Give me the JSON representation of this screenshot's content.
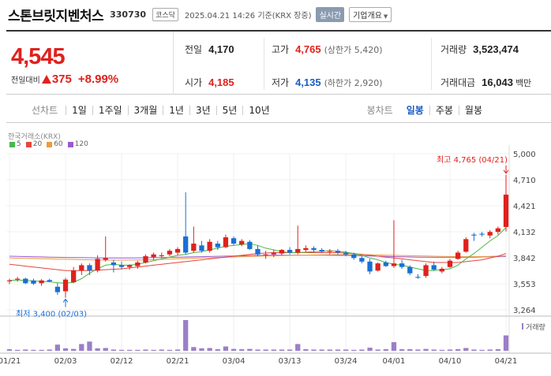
{
  "header": {
    "name": "스톤브릿지벤처스",
    "code": "330730",
    "market": "코스닥",
    "datetime": "2025.04.21 14:26 기준(KRX 장중)",
    "realtime_label": "실시간",
    "company_info_label": "기업개요"
  },
  "summary": {
    "price": "4,545",
    "change_label": "전일대비",
    "change": "375",
    "change_pct": "+8.99%",
    "prev_close_label": "전일",
    "prev_close": "4,170",
    "high_label": "고가",
    "high": "4,765",
    "upper_limit": "(상한가 5,420)",
    "volume_label": "거래량",
    "volume": "3,523,474",
    "open_label": "시가",
    "open": "4,185",
    "low_label": "저가",
    "low": "4,135",
    "lower_limit": "(하한가 2,920)",
    "amount_label": "거래대금",
    "amount": "16,043",
    "amount_unit": "백만"
  },
  "toolbar": {
    "line_label": "선차트",
    "periods": [
      "1일",
      "1주일",
      "3개월",
      "1년",
      "3년",
      "5년",
      "10년"
    ],
    "candle_label": "봉차트",
    "candle_periods": [
      "일봉",
      "주봉",
      "월봉"
    ],
    "active_candle": "일봉"
  },
  "chart_data": {
    "type": "candlestick",
    "source_label": "한국거래소(KRX)",
    "ma_legend": [
      {
        "label": "5",
        "color": "#49b84a"
      },
      {
        "label": "20",
        "color": "#e8453c"
      },
      {
        "label": "60",
        "color": "#f09a3e"
      },
      {
        "label": "120",
        "color": "#9b59d0"
      }
    ],
    "up_color": "#e0211d",
    "down_color": "#1a6fd6",
    "y_ticks": [
      "5,000",
      "4,710",
      "4,421",
      "4,132",
      "3,842",
      "3,553",
      "3,264"
    ],
    "ylim": [
      3264,
      5000
    ],
    "x_ticks": [
      {
        "label": "01/21",
        "index": 0
      },
      {
        "label": "02/03",
        "index": 7
      },
      {
        "label": "02/12",
        "index": 14
      },
      {
        "label": "02/21",
        "index": 21
      },
      {
        "label": "03/04",
        "index": 28
      },
      {
        "label": "03/13",
        "index": 35
      },
      {
        "label": "03/24",
        "index": 42
      },
      {
        "label": "04/01",
        "index": 48
      },
      {
        "label": "04/10",
        "index": 55
      },
      {
        "label": "04/21",
        "index": 62
      }
    ],
    "high_annotation": "최고 4,765 (04/21)",
    "low_annotation": "최저 3,400 (02/03)",
    "volume_label": "거래량",
    "candles": [
      {
        "o": 3580,
        "h": 3610,
        "l": 3550,
        "c": 3590
      },
      {
        "o": 3600,
        "h": 3630,
        "l": 3575,
        "c": 3610
      },
      {
        "o": 3610,
        "h": 3620,
        "l": 3550,
        "c": 3560
      },
      {
        "o": 3590,
        "h": 3610,
        "l": 3540,
        "c": 3555
      },
      {
        "o": 3560,
        "h": 3605,
        "l": 3530,
        "c": 3590
      },
      {
        "o": 3595,
        "h": 3610,
        "l": 3570,
        "c": 3580
      },
      {
        "o": 3520,
        "h": 3560,
        "l": 3430,
        "c": 3460
      },
      {
        "o": 3470,
        "h": 3620,
        "l": 3400,
        "c": 3600
      },
      {
        "o": 3570,
        "h": 3740,
        "l": 3560,
        "c": 3700
      },
      {
        "o": 3700,
        "h": 3780,
        "l": 3650,
        "c": 3760
      },
      {
        "o": 3760,
        "h": 3780,
        "l": 3650,
        "c": 3700
      },
      {
        "o": 3700,
        "h": 3870,
        "l": 3680,
        "c": 3830
      },
      {
        "o": 3820,
        "h": 4080,
        "l": 3800,
        "c": 3840
      },
      {
        "o": 3790,
        "h": 3820,
        "l": 3680,
        "c": 3760
      },
      {
        "o": 3760,
        "h": 3800,
        "l": 3710,
        "c": 3740
      },
      {
        "o": 3740,
        "h": 3770,
        "l": 3710,
        "c": 3760
      },
      {
        "o": 3750,
        "h": 3810,
        "l": 3720,
        "c": 3790
      },
      {
        "o": 3790,
        "h": 3880,
        "l": 3780,
        "c": 3860
      },
      {
        "o": 3850,
        "h": 3900,
        "l": 3820,
        "c": 3880
      },
      {
        "o": 3860,
        "h": 3900,
        "l": 3840,
        "c": 3870
      },
      {
        "o": 3880,
        "h": 3940,
        "l": 3860,
        "c": 3920
      },
      {
        "o": 3900,
        "h": 3960,
        "l": 3870,
        "c": 3940
      },
      {
        "o": 4080,
        "h": 4570,
        "l": 3880,
        "c": 3900
      },
      {
        "o": 3920,
        "h": 4190,
        "l": 3900,
        "c": 4000
      },
      {
        "o": 3980,
        "h": 4030,
        "l": 3900,
        "c": 3920
      },
      {
        "o": 3920,
        "h": 4050,
        "l": 3900,
        "c": 4020
      },
      {
        "o": 4000,
        "h": 4030,
        "l": 3930,
        "c": 3960
      },
      {
        "o": 3960,
        "h": 4100,
        "l": 3950,
        "c": 4070
      },
      {
        "o": 4060,
        "h": 4080,
        "l": 3980,
        "c": 4000
      },
      {
        "o": 3990,
        "h": 4050,
        "l": 3970,
        "c": 4030
      },
      {
        "o": 4020,
        "h": 4040,
        "l": 3930,
        "c": 3940
      },
      {
        "o": 3940,
        "h": 3980,
        "l": 3860,
        "c": 3880
      },
      {
        "o": 3880,
        "h": 3920,
        "l": 3830,
        "c": 3880
      },
      {
        "o": 3880,
        "h": 3930,
        "l": 3850,
        "c": 3900
      },
      {
        "o": 3890,
        "h": 3940,
        "l": 3870,
        "c": 3930
      },
      {
        "o": 3930,
        "h": 3960,
        "l": 3880,
        "c": 3900
      },
      {
        "o": 3900,
        "h": 4200,
        "l": 3880,
        "c": 3940
      },
      {
        "o": 3930,
        "h": 3980,
        "l": 3910,
        "c": 3950
      },
      {
        "o": 3950,
        "h": 3970,
        "l": 3900,
        "c": 3930
      },
      {
        "o": 3930,
        "h": 3950,
        "l": 3900,
        "c": 3910
      },
      {
        "o": 3910,
        "h": 3940,
        "l": 3880,
        "c": 3920
      },
      {
        "o": 3920,
        "h": 3940,
        "l": 3880,
        "c": 3900
      },
      {
        "o": 3900,
        "h": 3920,
        "l": 3860,
        "c": 3880
      },
      {
        "o": 3880,
        "h": 3900,
        "l": 3820,
        "c": 3840
      },
      {
        "o": 3840,
        "h": 3860,
        "l": 3780,
        "c": 3800
      },
      {
        "o": 3800,
        "h": 3830,
        "l": 3660,
        "c": 3690
      },
      {
        "o": 3700,
        "h": 3790,
        "l": 3690,
        "c": 3780
      },
      {
        "o": 3790,
        "h": 3810,
        "l": 3740,
        "c": 3750
      },
      {
        "o": 3750,
        "h": 4260,
        "l": 3730,
        "c": 3780
      },
      {
        "o": 3780,
        "h": 3820,
        "l": 3720,
        "c": 3740
      },
      {
        "o": 3740,
        "h": 3760,
        "l": 3650,
        "c": 3670
      },
      {
        "o": 3630,
        "h": 3660,
        "l": 3610,
        "c": 3620
      },
      {
        "o": 3640,
        "h": 3780,
        "l": 3620,
        "c": 3760
      },
      {
        "o": 3760,
        "h": 3800,
        "l": 3700,
        "c": 3710
      },
      {
        "o": 3690,
        "h": 3740,
        "l": 3670,
        "c": 3720
      },
      {
        "o": 3740,
        "h": 3830,
        "l": 3730,
        "c": 3810
      },
      {
        "o": 3830,
        "h": 3920,
        "l": 3820,
        "c": 3900
      },
      {
        "o": 3910,
        "h": 4070,
        "l": 3900,
        "c": 4050
      },
      {
        "o": 4100,
        "h": 4120,
        "l": 4030,
        "c": 4090
      },
      {
        "o": 4110,
        "h": 4130,
        "l": 4080,
        "c": 4100
      },
      {
        "o": 4090,
        "h": 4150,
        "l": 4060,
        "c": 4130
      },
      {
        "o": 4130,
        "h": 4190,
        "l": 4100,
        "c": 4170
      },
      {
        "o": 4185,
        "h": 4765,
        "l": 4135,
        "c": 4545
      }
    ],
    "volumes": [
      5,
      3,
      4,
      3,
      3,
      4,
      20,
      8,
      6,
      22,
      30,
      8,
      9,
      4,
      3,
      3,
      3,
      4,
      3,
      4,
      3,
      4,
      100,
      12,
      8,
      9,
      5,
      14,
      6,
      5,
      6,
      4,
      4,
      4,
      4,
      4,
      22,
      5,
      4,
      4,
      4,
      4,
      4,
      3,
      4,
      10,
      4,
      5,
      28,
      5,
      5,
      4,
      6,
      4,
      3,
      4,
      5,
      9,
      4,
      3,
      4,
      5,
      50
    ],
    "ma5": [
      3590,
      3595,
      3590,
      3585,
      3580,
      3575,
      3565,
      3560,
      3570,
      3610,
      3670,
      3720,
      3760,
      3770,
      3760,
      3760,
      3770,
      3790,
      3810,
      3830,
      3850,
      3870,
      3880,
      3900,
      3910,
      3930,
      3950,
      3970,
      3980,
      3990,
      4000,
      3980,
      3950,
      3930,
      3910,
      3900,
      3900,
      3905,
      3910,
      3915,
      3920,
      3915,
      3905,
      3890,
      3870,
      3840,
      3820,
      3790,
      3770,
      3760,
      3740,
      3720,
      3700,
      3700,
      3710,
      3720,
      3760,
      3830,
      3890,
      3960,
      4030,
      4090,
      4180
    ],
    "ma20": [
      3770,
      3760,
      3750,
      3740,
      3730,
      3720,
      3710,
      3700,
      3700,
      3700,
      3700,
      3705,
      3710,
      3715,
      3720,
      3730,
      3740,
      3750,
      3760,
      3770,
      3780,
      3790,
      3800,
      3810,
      3820,
      3830,
      3840,
      3850,
      3860,
      3870,
      3880,
      3890,
      3895,
      3900,
      3900,
      3900,
      3900,
      3900,
      3900,
      3900,
      3900,
      3900,
      3895,
      3890,
      3880,
      3870,
      3860,
      3850,
      3840,
      3830,
      3820,
      3810,
      3800,
      3790,
      3790,
      3790,
      3790,
      3800,
      3810,
      3820,
      3840,
      3860,
      3890
    ],
    "ma60": [
      3840,
      3838,
      3836,
      3834,
      3832,
      3830,
      3828,
      3826,
      3824,
      3822,
      3820,
      3818,
      3817,
      3816,
      3816,
      3817,
      3818,
      3820,
      3822,
      3825,
      3828,
      3831,
      3834,
      3837,
      3840,
      3843,
      3846,
      3849,
      3852,
      3855,
      3858,
      3860,
      3862,
      3864,
      3866,
      3868,
      3870,
      3872,
      3874,
      3876,
      3877,
      3878,
      3878,
      3878,
      3877,
      3876,
      3874,
      3872,
      3870,
      3868,
      3866,
      3864,
      3862,
      3860,
      3858,
      3857,
      3856,
      3855,
      3855,
      3856,
      3858,
      3861,
      3865
    ],
    "ma120": [
      3860,
      3858,
      3856,
      3854,
      3852,
      3850,
      3848,
      3846,
      3845,
      3844,
      3843,
      3842,
      3841,
      3841,
      3841,
      3841,
      3842,
      3843,
      3844,
      3845,
      3847,
      3849,
      3851,
      3853,
      3855,
      3857,
      3859,
      3861,
      3863,
      3865,
      3867,
      3869,
      3870,
      3871,
      3872,
      3872,
      3872,
      3872,
      3872,
      3871,
      3870,
      3869,
      3868,
      3866,
      3864,
      3862,
      3860,
      3858,
      3856,
      3854,
      3852,
      3850,
      3849,
      3848,
      3848,
      3848,
      3848,
      3849,
      3850,
      3852,
      3854,
      3856,
      3858
    ]
  }
}
